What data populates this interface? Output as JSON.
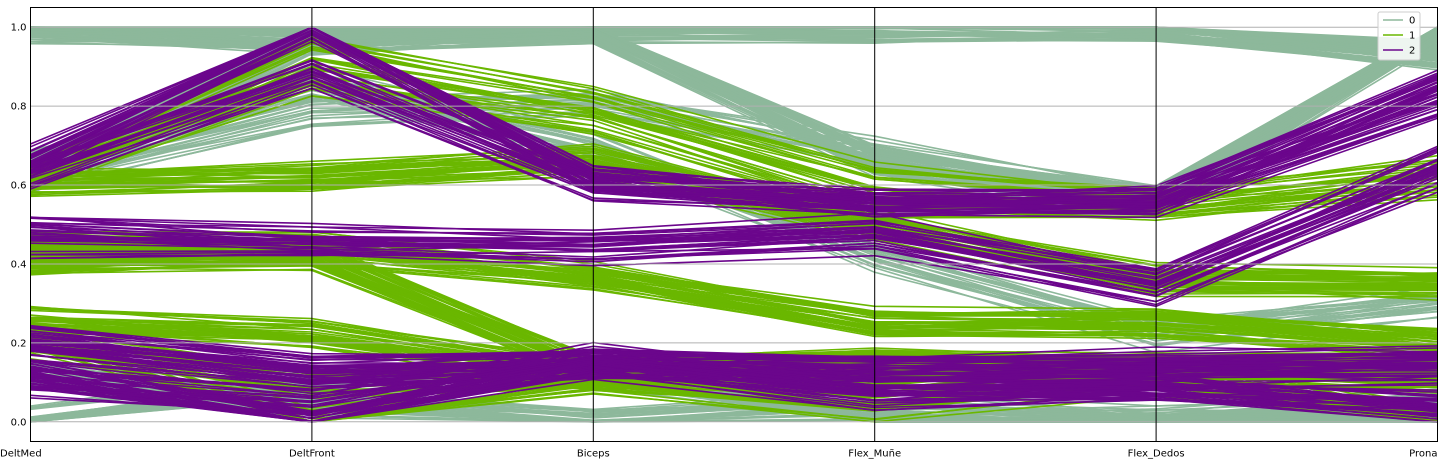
{
  "chart_data": {
    "type": "parallel_coordinates",
    "axes": [
      "DeltMed",
      "DeltFront",
      "Biceps",
      "Flex_Muñe",
      "Flex_Dedos",
      "Prona"
    ],
    "ylim": [
      -0.05,
      1.05
    ],
    "yticks": [
      "0.0",
      "0.2",
      "0.4",
      "0.6",
      "0.8",
      "1.0"
    ],
    "grid": true,
    "legend": {
      "position": "top-right",
      "entries": [
        "0",
        "1",
        "2"
      ]
    },
    "colors": {
      "0": "#8db89b",
      "1": "#6ab700",
      "2": "#6b068c"
    },
    "series": [
      {
        "name": "0",
        "lines": [
          {
            "values": [
              1.0,
              0.97,
              1.0,
              1.0,
              1.0,
              0.93
            ],
            "count": 60
          },
          {
            "values": [
              0.62,
              0.97,
              1.0,
              0.66,
              0.56,
              1.0
            ],
            "count": 60
          },
          {
            "values": [
              0.62,
              0.78,
              0.81,
              0.68,
              0.56,
              1.0
            ],
            "count": 20
          },
          {
            "values": [
              0.66,
              0.86,
              0.7,
              0.42,
              0.22,
              0.3
            ],
            "count": 25
          },
          {
            "values": [
              0.0,
              0.1,
              0.12,
              0.0,
              0.0,
              0.05
            ],
            "count": 30
          },
          {
            "values": [
              0.12,
              0.05,
              0.0,
              0.04,
              0.0,
              0.02
            ],
            "count": 30
          }
        ]
      },
      {
        "name": "1",
        "lines": [
          {
            "values": [
              0.62,
              0.94,
              0.81,
              0.62,
              0.56,
              0.64
            ],
            "count": 15
          },
          {
            "values": [
              0.62,
              0.86,
              0.76,
              0.55,
              0.54,
              0.6
            ],
            "count": 15
          },
          {
            "values": [
              0.61,
              0.62,
              0.66,
              0.5,
              0.36,
              0.35
            ],
            "count": 40
          },
          {
            "values": [
              0.45,
              0.44,
              0.37,
              0.25,
              0.25,
              0.2
            ],
            "count": 40
          },
          {
            "values": [
              0.41,
              0.42,
              0.13,
              0.15,
              0.14,
              0.14
            ],
            "count": 45
          },
          {
            "values": [
              0.26,
              0.22,
              0.12,
              0.14,
              0.13,
              0.1
            ],
            "count": 35
          },
          {
            "values": [
              0.2,
              0.1,
              0.12,
              0.07,
              0.14,
              0.0
            ],
            "count": 20
          },
          {
            "values": [
              0.21,
              0.0,
              0.09,
              0.04,
              0.1,
              0.0
            ],
            "count": 15
          }
        ]
      },
      {
        "name": "2",
        "lines": [
          {
            "values": [
              0.66,
              1.0,
              0.62,
              0.55,
              0.56,
              0.86
            ],
            "count": 25
          },
          {
            "values": [
              0.63,
              0.88,
              0.6,
              0.56,
              0.55,
              0.8
            ],
            "count": 20
          },
          {
            "values": [
              0.5,
              0.47,
              0.46,
              0.49,
              0.36,
              0.66
            ],
            "count": 15
          },
          {
            "values": [
              0.45,
              0.44,
              0.43,
              0.46,
              0.33,
              0.62
            ],
            "count": 15
          },
          {
            "values": [
              0.21,
              0.14,
              0.15,
              0.14,
              0.15,
              0.16
            ],
            "count": 25
          },
          {
            "values": [
              0.18,
              0.11,
              0.14,
              0.13,
              0.12,
              0.12
            ],
            "count": 20
          },
          {
            "values": [
              0.12,
              0.0,
              0.14,
              0.07,
              0.09,
              0.03
            ],
            "count": 25
          },
          {
            "values": [
              0.1,
              0.05,
              0.16,
              0.09,
              0.08,
              0.05
            ],
            "count": 15
          }
        ]
      }
    ]
  }
}
